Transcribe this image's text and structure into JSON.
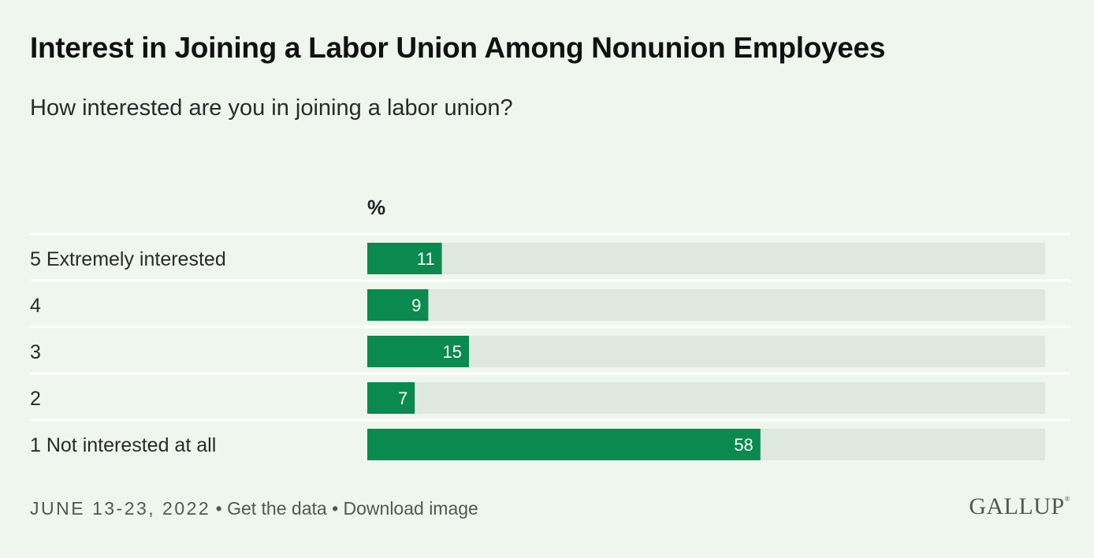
{
  "chart_data": {
    "type": "bar",
    "orientation": "horizontal",
    "title": "Interest in Joining a Labor Union Among Nonunion Employees",
    "subtitle": "How interested are you in joining a labor union?",
    "unit_label": "%",
    "categories": [
      "5 Extremely interested",
      "4",
      "3",
      "2",
      "1 Not interested at all"
    ],
    "values": [
      11,
      9,
      15,
      7,
      58
    ],
    "xlim": [
      0,
      100
    ],
    "bar_color": "#0a8a4e",
    "track_color": "#dfe8df",
    "grid": false
  },
  "footer": {
    "date": "JUNE 13-23, 2022",
    "separator": "•",
    "get_data": "Get the data",
    "download": "Download image"
  },
  "brand": {
    "name": "GALLUP",
    "mark": "®"
  }
}
